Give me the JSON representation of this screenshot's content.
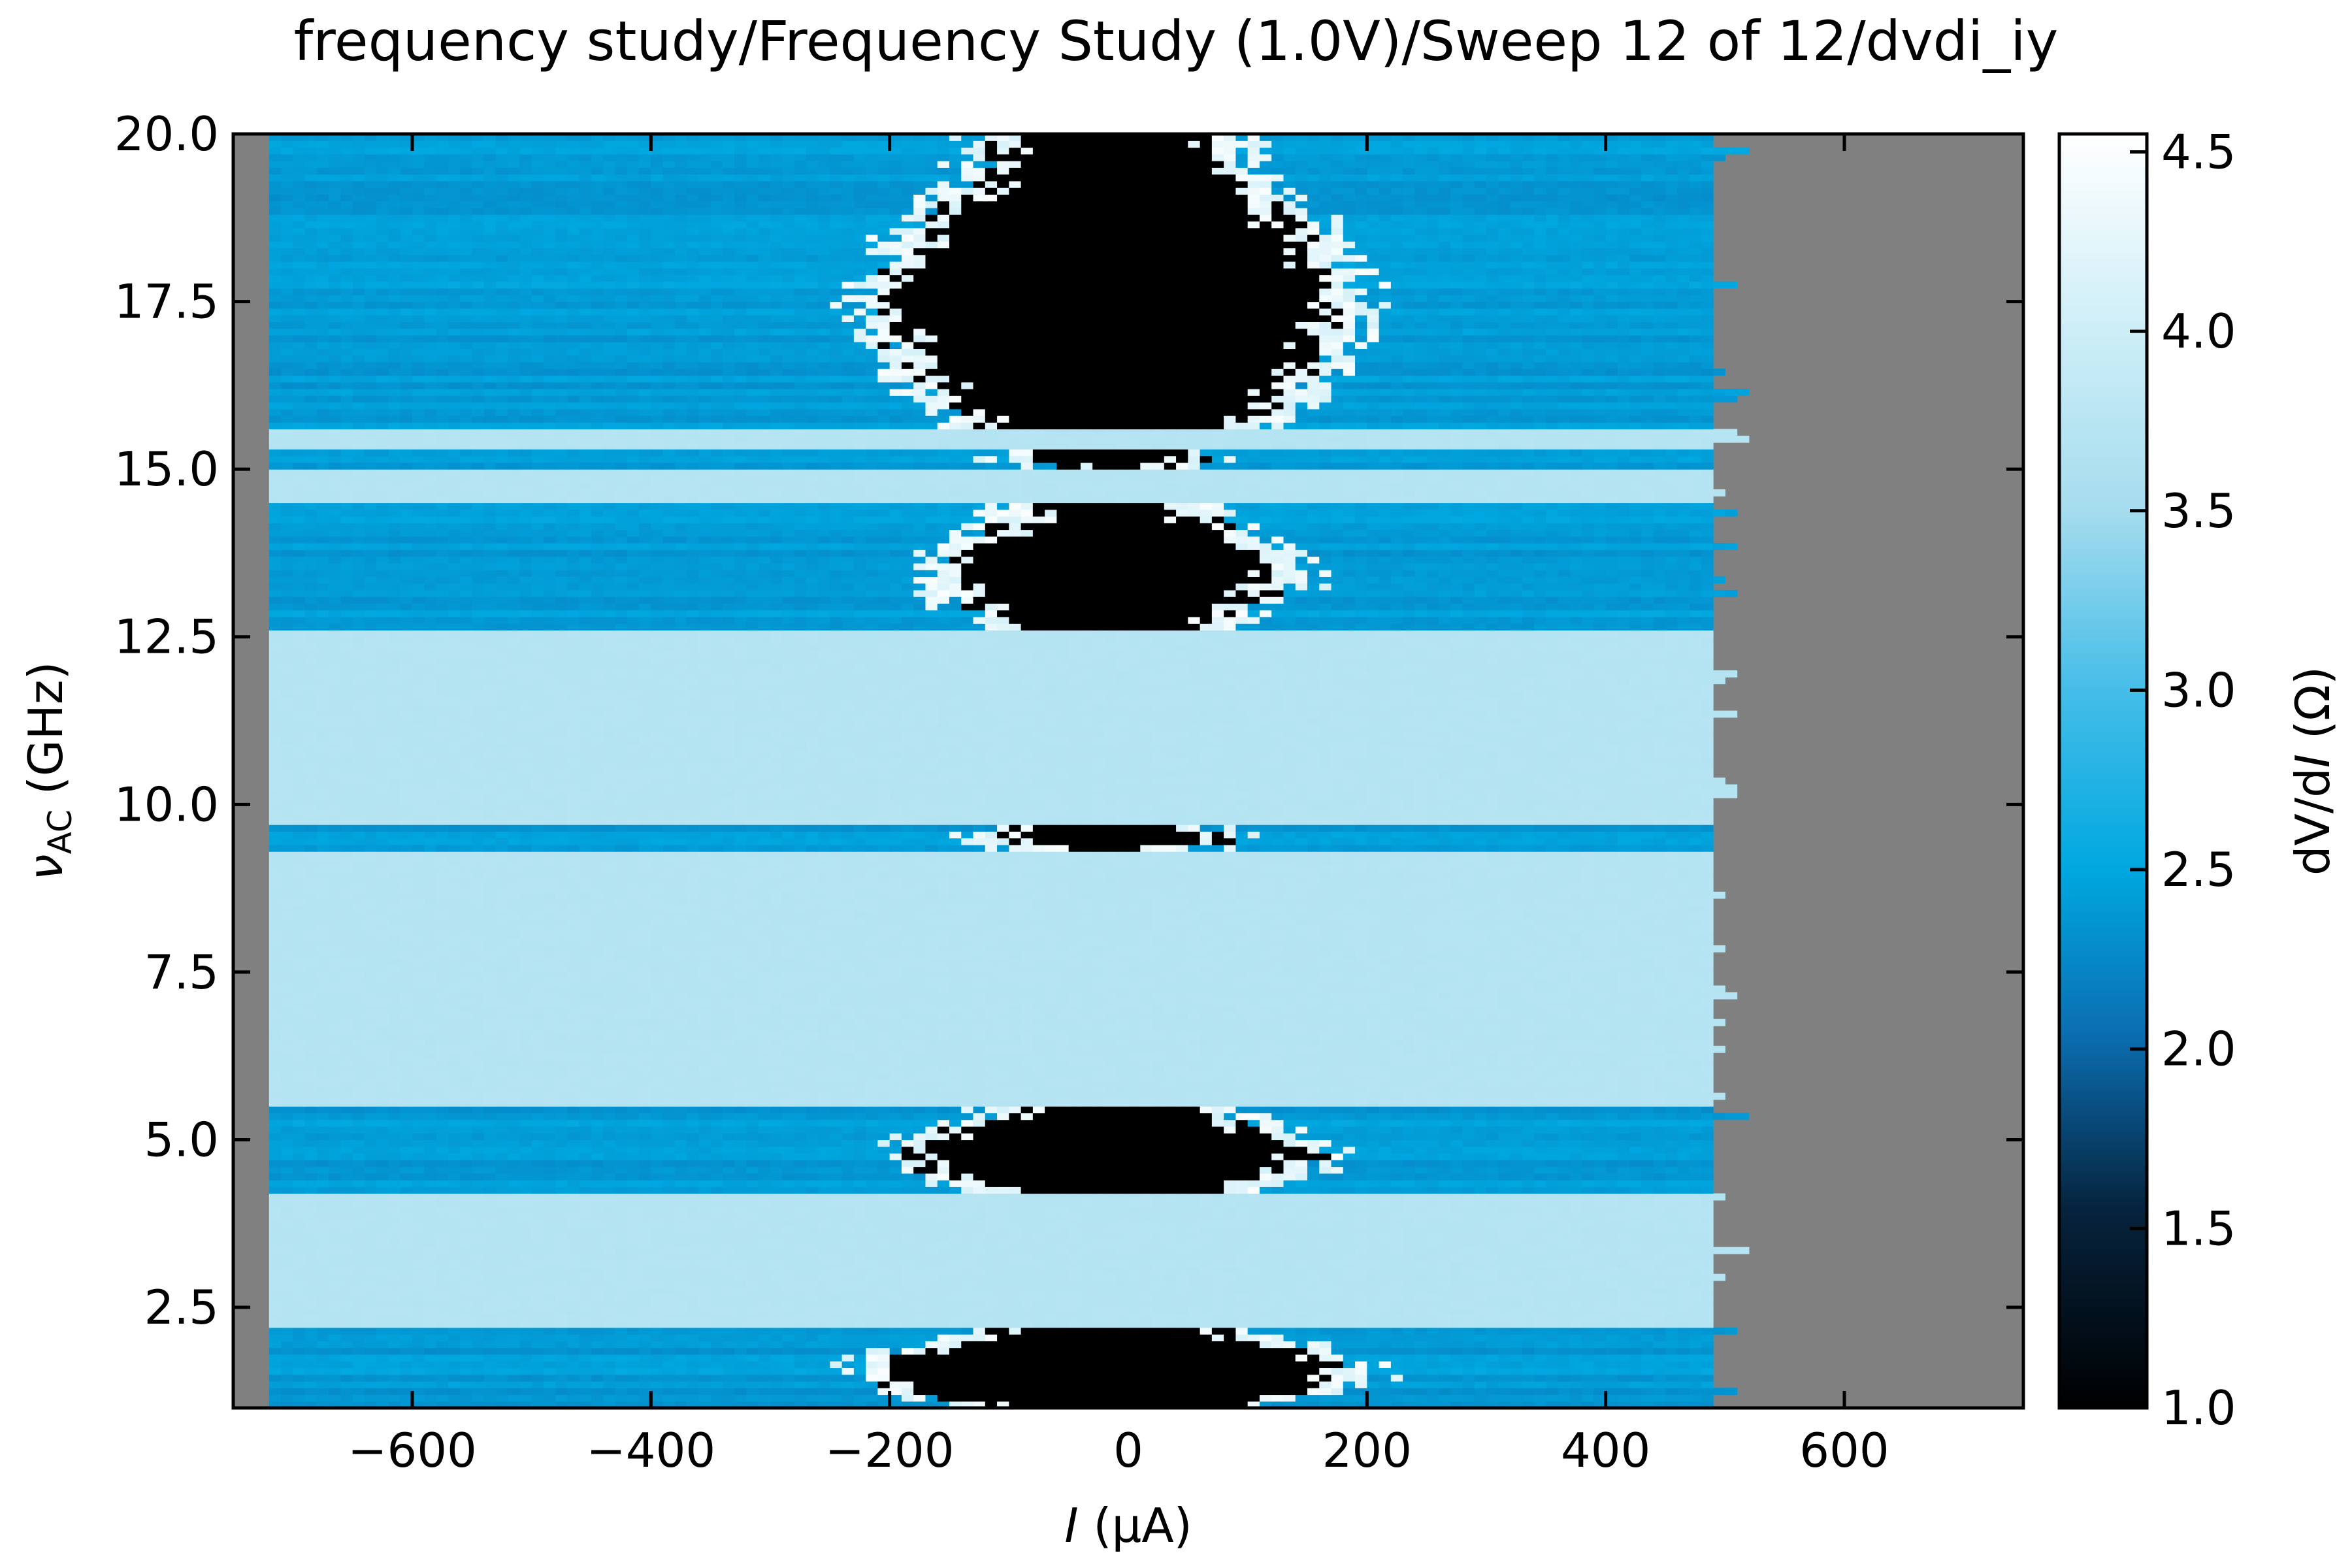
{
  "chart_data": {
    "type": "heatmap",
    "title": "frequency study/Frequency Study (1.0V)/Sweep 12 of 12/dvdi_iy",
    "xlabel": {
      "italic": "I",
      "rest": " (μA)"
    },
    "ylabel": {
      "base": "ν",
      "sub": "AC",
      "rest": " (GHz)"
    },
    "colorbar_label": {
      "pre": "dV/d",
      "italic": "I",
      "post": " (Ω)"
    },
    "xlim": [
      -750,
      750
    ],
    "ylim": [
      1.0,
      20.0
    ],
    "clim": [
      1.0,
      4.55
    ],
    "colormap": "black-blue-white",
    "colormap_stops": [
      {
        "v": 1.0,
        "color": "#000000"
      },
      {
        "v": 1.55,
        "color": "#06233d"
      },
      {
        "v": 2.05,
        "color": "#0b6fb3"
      },
      {
        "v": 2.5,
        "color": "#00a8e0"
      },
      {
        "v": 3.0,
        "color": "#45bde8"
      },
      {
        "v": 3.5,
        "color": "#a5dcee"
      },
      {
        "v": 4.0,
        "color": "#cdeef7"
      },
      {
        "v": 4.55,
        "color": "#ffffff"
      }
    ],
    "no_data_color": "#808080",
    "x_ticks": [
      {
        "v": -600,
        "label": "−600"
      },
      {
        "v": -400,
        "label": "−400"
      },
      {
        "v": -200,
        "label": "−200"
      },
      {
        "v": 0,
        "label": "0"
      },
      {
        "v": 200,
        "label": "200"
      },
      {
        "v": 400,
        "label": "400"
      },
      {
        "v": 600,
        "label": "600"
      }
    ],
    "y_ticks": [
      {
        "v": 2.5,
        "label": "2.5"
      },
      {
        "v": 5.0,
        "label": "5.0"
      },
      {
        "v": 7.5,
        "label": "7.5"
      },
      {
        "v": 10.0,
        "label": "10.0"
      },
      {
        "v": 12.5,
        "label": "12.5"
      },
      {
        "v": 15.0,
        "label": "15.0"
      },
      {
        "v": 17.5,
        "label": "17.5"
      },
      {
        "v": 20.0,
        "label": "20.0"
      }
    ],
    "colorbar_ticks": [
      {
        "v": 1.0,
        "label": "1.0"
      },
      {
        "v": 1.5,
        "label": "1.5"
      },
      {
        "v": 2.0,
        "label": "2.0"
      },
      {
        "v": 2.5,
        "label": "2.5"
      },
      {
        "v": 3.0,
        "label": "3.0"
      },
      {
        "v": 3.5,
        "label": "3.5"
      },
      {
        "v": 4.0,
        "label": "4.0"
      },
      {
        "v": 4.5,
        "label": "4.5"
      }
    ],
    "data_current_range": [
      -720,
      490
    ],
    "frequency_bands": [
      {
        "from": 1.0,
        "to": 2.2,
        "state": "normal",
        "dVdI": 2.4,
        "gap_halfwidth": 210
      },
      {
        "from": 2.2,
        "to": 4.2,
        "state": "resistive",
        "dVdI": 3.7
      },
      {
        "from": 4.2,
        "to": 5.5,
        "state": "normal",
        "dVdI": 2.4,
        "gap_halfwidth": 180
      },
      {
        "from": 5.5,
        "to": 9.3,
        "state": "resistive",
        "dVdI": 3.7
      },
      {
        "from": 9.3,
        "to": 9.7,
        "state": "normal",
        "dVdI": 2.4,
        "gap_halfwidth": 110
      },
      {
        "from": 9.7,
        "to": 12.6,
        "state": "resistive",
        "dVdI": 3.7
      },
      {
        "from": 12.6,
        "to": 14.5,
        "state": "normal",
        "dVdI": 2.4,
        "gap_halfwidth": 150
      },
      {
        "from": 14.5,
        "to": 15.0,
        "state": "resistive",
        "dVdI": 3.7
      },
      {
        "from": 15.0,
        "to": 15.3,
        "state": "normal",
        "dVdI": 2.4,
        "gap_halfwidth": 90
      },
      {
        "from": 15.3,
        "to": 15.6,
        "state": "resistive",
        "dVdI": 3.7
      },
      {
        "from": 15.6,
        "to": 20.0,
        "state": "normal",
        "dVdI": 2.4,
        "gap_halfwidth": 200
      }
    ],
    "superconducting_dVdI": 1.0,
    "transition_peak_dVdI": 4.5
  }
}
